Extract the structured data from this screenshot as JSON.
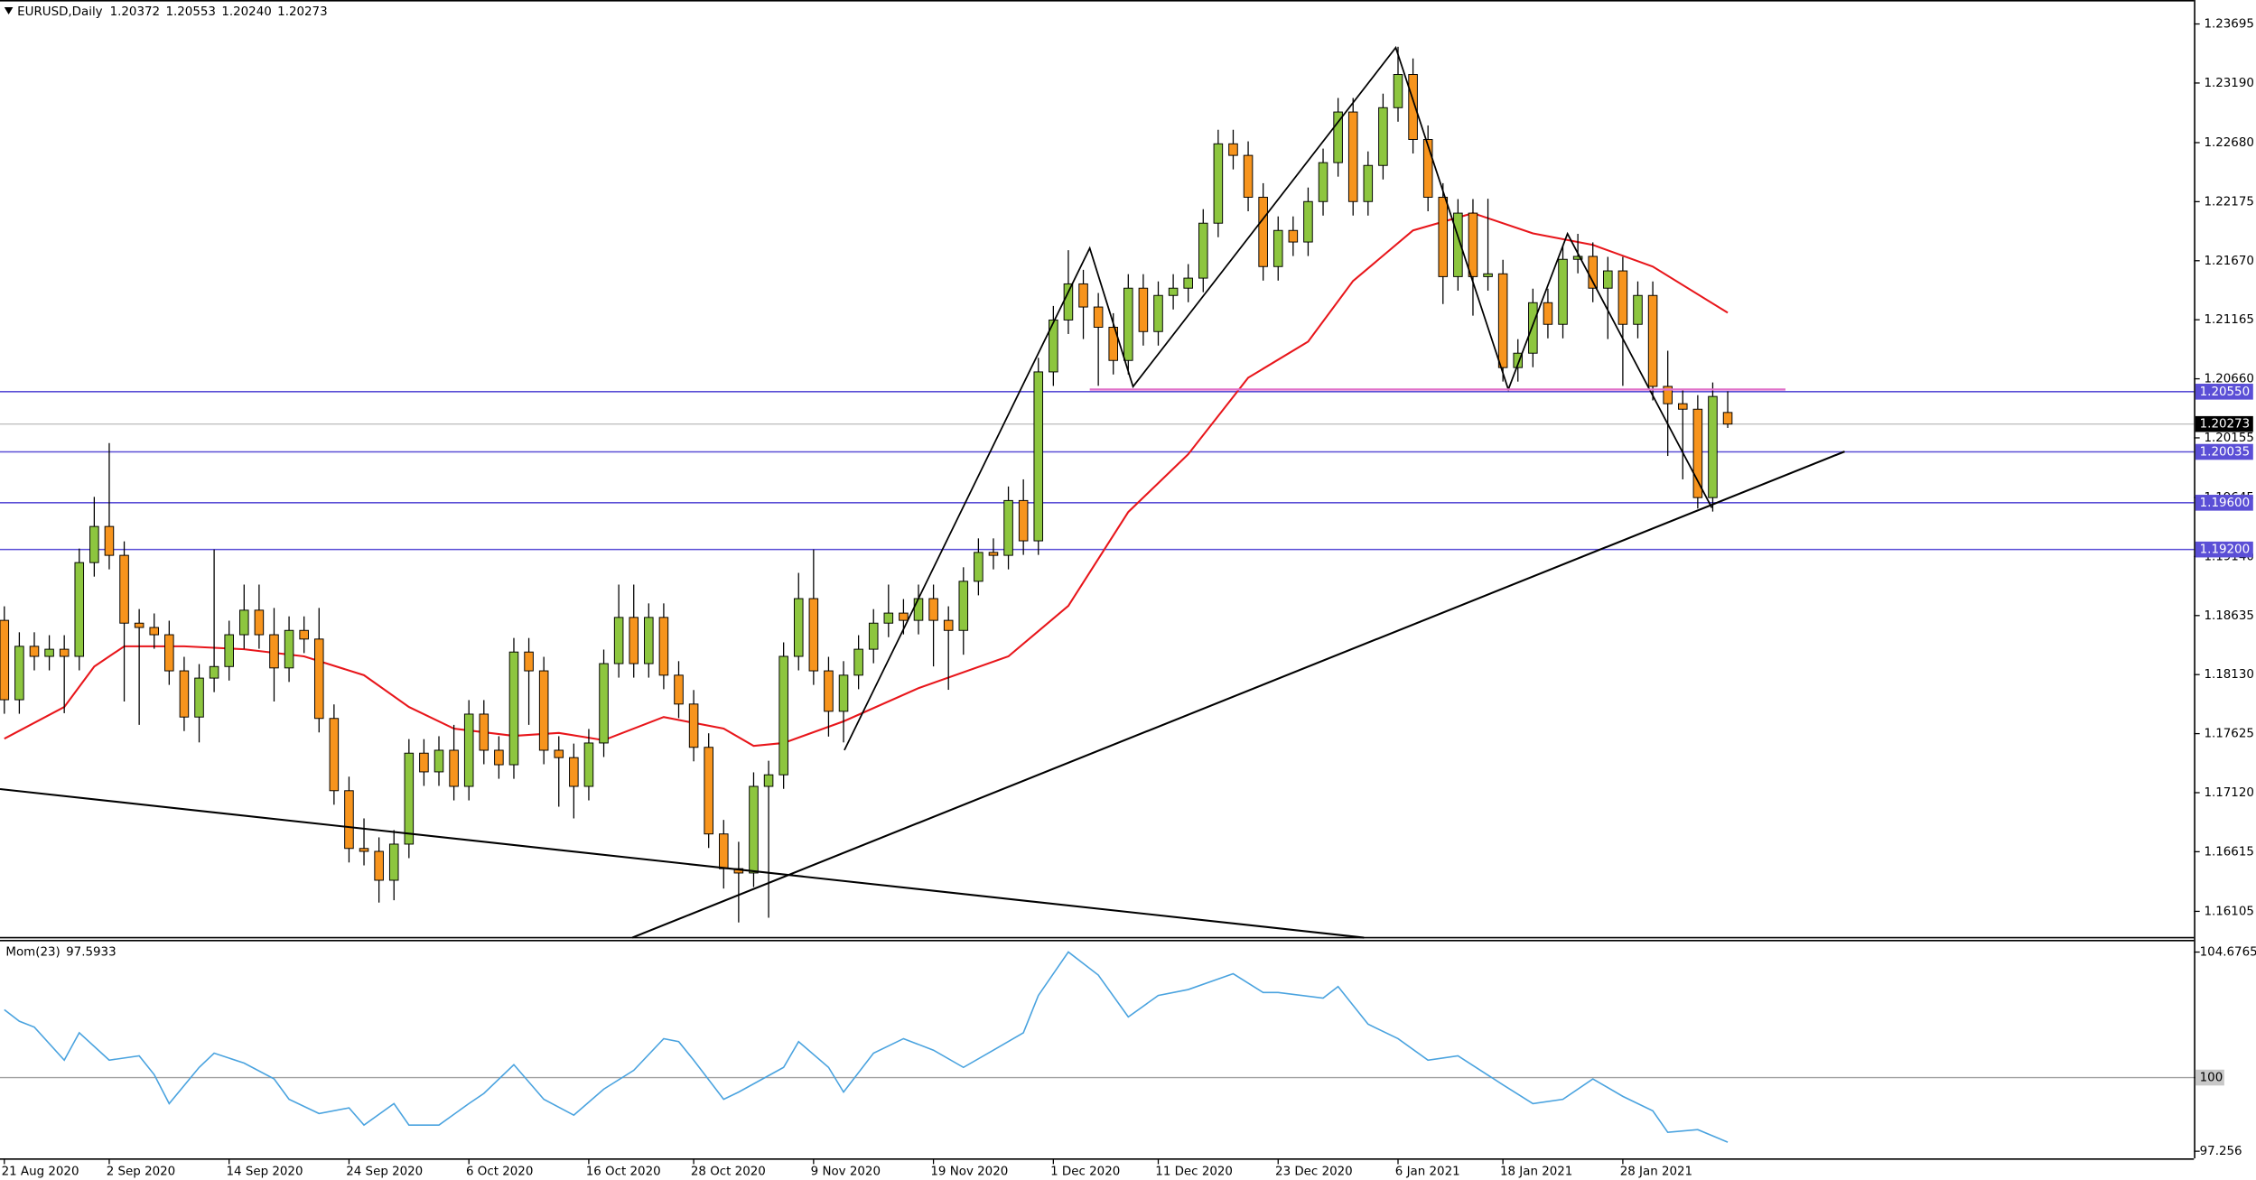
{
  "chart_data": {
    "type": "candlestick",
    "title": "EURUSD,Daily",
    "quote_labels": [
      "1.20372",
      "1.20553",
      "1.20240",
      "1.20273"
    ],
    "categories": [
      "21 Aug 2020",
      null,
      null,
      null,
      null,
      null,
      null,
      "2 Sep 2020",
      null,
      null,
      null,
      null,
      null,
      null,
      null,
      "14 Sep 2020",
      null,
      null,
      null,
      null,
      null,
      null,
      null,
      "24 Sep 2020",
      null,
      null,
      null,
      null,
      null,
      null,
      null,
      "6 Oct 2020",
      null,
      null,
      null,
      null,
      null,
      null,
      null,
      "16 Oct 2020",
      null,
      null,
      null,
      null,
      null,
      null,
      "28 Oct 2020",
      null,
      null,
      null,
      null,
      null,
      null,
      null,
      "9 Nov 2020",
      null,
      null,
      null,
      null,
      null,
      null,
      null,
      "19 Nov 2020",
      null,
      null,
      null,
      null,
      null,
      null,
      null,
      "1 Dec 2020",
      null,
      null,
      null,
      null,
      null,
      null,
      "11 Dec 2020",
      null,
      null,
      null,
      null,
      null,
      null,
      null,
      "23 Dec 2020",
      null,
      null,
      null,
      null,
      null,
      null,
      null,
      "6 Jan 2021",
      null,
      null,
      null,
      null,
      null,
      null,
      "18 Jan 2021",
      null,
      null,
      null,
      null,
      null,
      null,
      null,
      "28 Jan 2021",
      null,
      null,
      null,
      null,
      null,
      null,
      null
    ],
    "open": [
      1.18594,
      1.17915,
      1.18372,
      1.18286,
      1.18347,
      1.18286,
      1.19088,
      1.19397,
      1.1915,
      1.1857,
      1.18533,
      1.18471,
      1.18162,
      1.17767,
      1.181,
      1.18199,
      1.18471,
      1.18681,
      1.18471,
      1.18187,
      1.18508,
      1.18434,
      1.17755,
      1.17137,
      1.16643,
      1.16618,
      1.16371,
      1.1668,
      1.17458,
      1.17298,
      1.17483,
      1.17174,
      1.17792,
      1.17483,
      1.17359,
      1.18323,
      1.18162,
      1.17483,
      1.1742,
      1.17174,
      1.17545,
      1.18224,
      1.18619,
      1.18224,
      1.18619,
      1.18125,
      1.17878,
      1.17508,
      1.16767,
      1.1647,
      1.16433,
      1.17174,
      1.17273,
      1.18286,
      1.1878,
      1.18162,
      1.17816,
      1.18125,
      1.18347,
      1.1857,
      1.18656,
      1.18594,
      1.1878,
      1.18594,
      1.18508,
      1.18928,
      1.19175,
      1.1915,
      1.19619,
      1.19274,
      1.20719,
      1.21163,
      1.21472,
      1.21274,
      1.21101,
      1.20817,
      1.21435,
      1.21064,
      1.21373,
      1.21435,
      1.21521,
      1.21991,
      1.2267,
      1.22571,
      1.22213,
      1.2162,
      1.21929,
      1.2183,
      1.22176,
      1.22509,
      1.22942,
      1.22176,
      1.22485,
      1.22979,
      1.23263,
      1.22707,
      1.22213,
      1.21534,
      1.22077,
      1.21534,
      1.21558,
      1.20756,
      1.20879,
      1.21311,
      1.21126,
      1.21682,
      1.21707,
      1.21435,
      1.21583,
      1.21126,
      1.21373,
      1.20595,
      1.20447,
      1.204,
      1.19644,
      1.20372
    ],
    "high": [
      1.18714,
      1.18492,
      1.18492,
      1.18467,
      1.18467,
      1.19208,
      1.1965,
      1.2011,
      1.1927,
      1.1869,
      1.18653,
      1.18591,
      1.18282,
      1.1822,
      1.192,
      1.18591,
      1.189,
      1.189,
      1.187,
      1.18628,
      1.18628,
      1.187,
      1.17875,
      1.17257,
      1.169,
      1.16738,
      1.168,
      1.17578,
      1.17578,
      1.17603,
      1.177,
      1.17912,
      1.17912,
      1.17603,
      1.18443,
      1.18443,
      1.18282,
      1.17603,
      1.1754,
      1.17665,
      1.18344,
      1.189,
      1.189,
      1.18739,
      1.18739,
      1.18245,
      1.17998,
      1.17628,
      1.16887,
      1.167,
      1.17294,
      1.17393,
      1.18406,
      1.19,
      1.192,
      1.18282,
      1.18245,
      1.18467,
      1.1869,
      1.189,
      1.18776,
      1.189,
      1.189,
      1.18714,
      1.19048,
      1.19295,
      1.19295,
      1.19739,
      1.198,
      1.20839,
      1.21283,
      1.2176,
      1.21592,
      1.21394,
      1.21221,
      1.21555,
      1.21555,
      1.21493,
      1.21555,
      1.21641,
      1.22111,
      1.2279,
      1.2279,
      1.22691,
      1.22333,
      1.22049,
      1.22049,
      1.22296,
      1.22629,
      1.23062,
      1.23062,
      1.22605,
      1.23099,
      1.235,
      1.234,
      1.22827,
      1.22333,
      1.22197,
      1.22197,
      1.222,
      1.21678,
      1.20999,
      1.21431,
      1.21431,
      1.21802,
      1.219,
      1.21827,
      1.21703,
      1.21703,
      1.21493,
      1.21493,
      1.209,
      1.20567,
      1.2052,
      1.20629,
      1.20553
    ],
    "low": [
      1.17795,
      1.17795,
      1.18166,
      1.18166,
      1.178,
      1.18166,
      1.18968,
      1.1903,
      1.179,
      1.177,
      1.18351,
      1.18042,
      1.17647,
      1.1755,
      1.1798,
      1.18079,
      1.18351,
      1.18351,
      1.179,
      1.18067,
      1.18314,
      1.17635,
      1.17017,
      1.16523,
      1.16498,
      1.1618,
      1.162,
      1.1656,
      1.17178,
      1.17178,
      1.17054,
      1.17054,
      1.17363,
      1.17239,
      1.17239,
      1.177,
      1.17363,
      1.17,
      1.169,
      1.17054,
      1.17425,
      1.18104,
      1.18104,
      1.18104,
      1.18005,
      1.17758,
      1.17388,
      1.16647,
      1.163,
      1.1601,
      1.16313,
      1.1605,
      1.17153,
      1.18166,
      1.18042,
      1.176,
      1.1755,
      1.18005,
      1.18227,
      1.1845,
      1.18474,
      1.18474,
      1.182,
      1.18,
      1.183,
      1.18808,
      1.1903,
      1.1903,
      1.19154,
      1.19154,
      1.20599,
      1.21043,
      1.21,
      1.206,
      1.20697,
      1.20697,
      1.20944,
      1.20944,
      1.21253,
      1.21315,
      1.21401,
      1.21871,
      1.22451,
      1.22093,
      1.215,
      1.215,
      1.2171,
      1.2171,
      1.22056,
      1.22389,
      1.22056,
      1.22056,
      1.22365,
      1.22859,
      1.22587,
      1.22093,
      1.213,
      1.21414,
      1.212,
      1.21414,
      1.20636,
      1.20636,
      1.20759,
      1.21006,
      1.21006,
      1.21562,
      1.21315,
      1.21,
      1.206,
      1.21006,
      1.20475,
      1.2,
      1.198,
      1.1955,
      1.19524,
      1.2024
    ],
    "close": [
      1.17915,
      1.18372,
      1.18286,
      1.18347,
      1.18286,
      1.19088,
      1.19397,
      1.1915,
      1.1857,
      1.18533,
      1.18471,
      1.18162,
      1.17767,
      1.181,
      1.18199,
      1.18471,
      1.18681,
      1.18471,
      1.18187,
      1.18508,
      1.18434,
      1.17755,
      1.17137,
      1.16643,
      1.16618,
      1.16371,
      1.1668,
      1.17458,
      1.17298,
      1.17483,
      1.17174,
      1.17792,
      1.17483,
      1.17359,
      1.18323,
      1.18162,
      1.17483,
      1.1742,
      1.17174,
      1.17545,
      1.18224,
      1.18619,
      1.18224,
      1.18619,
      1.18125,
      1.17878,
      1.17508,
      1.16767,
      1.1647,
      1.16433,
      1.17174,
      1.17273,
      1.18286,
      1.1878,
      1.18162,
      1.17816,
      1.18125,
      1.18347,
      1.1857,
      1.18656,
      1.18594,
      1.1878,
      1.18594,
      1.18508,
      1.18928,
      1.19175,
      1.1915,
      1.19619,
      1.19274,
      1.20719,
      1.21163,
      1.21472,
      1.21274,
      1.21101,
      1.20817,
      1.21435,
      1.21064,
      1.21373,
      1.21435,
      1.21521,
      1.21991,
      1.2267,
      1.22571,
      1.22213,
      1.2162,
      1.21929,
      1.2183,
      1.22176,
      1.22509,
      1.22942,
      1.22176,
      1.22485,
      1.22979,
      1.23263,
      1.22707,
      1.22213,
      1.21534,
      1.22077,
      1.21534,
      1.21558,
      1.20756,
      1.20879,
      1.21311,
      1.21126,
      1.21682,
      1.21707,
      1.21435,
      1.21583,
      1.21126,
      1.21373,
      1.20595,
      1.20447,
      1.204,
      1.19644,
      1.20509,
      1.20273
    ],
    "up_color": "#8dc63f",
    "down_color": "#f7941d",
    "ylim": [
      1.1588,
      1.239
    ],
    "yticks": [
      1.23695,
      {
        "value": 1.2319,
        "label": "1.23190"
      },
      {
        "value": 1.2268,
        "label": "1.22680"
      },
      1.22175,
      {
        "value": 1.2167,
        "label": "1.21670"
      },
      1.21165,
      {
        "value": 1.2066,
        "label": "1.20660"
      },
      1.20155,
      1.19645,
      {
        "value": 1.1914,
        "label": "1.19140"
      },
      1.18635,
      {
        "value": 1.1813,
        "label": "1.18130"
      },
      1.17625,
      {
        "value": 1.1712,
        "label": "1.17120"
      },
      1.16615,
      1.16105
    ],
    "levels": [
      {
        "value": 1.2055,
        "label": "1.20550"
      },
      {
        "value": 1.20035,
        "label": "1.20035"
      },
      {
        "value": 1.196,
        "label": "1.19600"
      },
      {
        "value": 1.192,
        "label": "1.19200"
      }
    ],
    "level_color": "#5b4fd6",
    "price_line_color": "#c0c0c0",
    "ma": {
      "color": "#e8161b",
      "x": [
        0,
        4,
        6,
        8,
        12,
        16,
        20,
        24,
        27,
        30,
        34,
        37,
        40,
        44,
        48,
        50,
        52,
        56,
        61,
        67,
        71,
        75,
        79,
        83,
        87,
        90,
        94,
        98,
        102,
        106,
        110,
        115
      ],
      "values": [
        1.17582,
        1.17853,
        1.18199,
        1.18372,
        1.18372,
        1.18347,
        1.18286,
        1.18125,
        1.17853,
        1.17668,
        1.17606,
        1.17631,
        1.17569,
        1.17767,
        1.17668,
        1.1752,
        1.17545,
        1.1773,
        1.18014,
        1.18286,
        1.18718,
        1.19521,
        1.20015,
        1.20669,
        1.20978,
        1.21497,
        1.21929,
        1.22077,
        1.21904,
        1.21805,
        1.2162,
        1.21225
      ]
    },
    "indicator": {
      "type": "line",
      "name": "Mom(23)",
      "color": "#4aa3df",
      "x": [
        0,
        1,
        2,
        4,
        5,
        7,
        9,
        10,
        11,
        13,
        14,
        16,
        18,
        19,
        21,
        23,
        24,
        26,
        27,
        29,
        31,
        32,
        34,
        36,
        38,
        40,
        42,
        44,
        45,
        46,
        48,
        49,
        52,
        53,
        55,
        56,
        58,
        60,
        62,
        64,
        66,
        68,
        69,
        71,
        73,
        75,
        77,
        79,
        82,
        84,
        85,
        88,
        89,
        91,
        93,
        95,
        97,
        100,
        102,
        104,
        106,
        108,
        110,
        111,
        113,
        115
      ],
      "values": [
        102.53,
        102.1,
        101.88,
        100.65,
        101.67,
        100.65,
        100.81,
        100.11,
        99.03,
        100.38,
        100.91,
        100.54,
        99.95,
        99.19,
        98.66,
        98.87,
        98.23,
        99.03,
        98.23,
        98.23,
        99.03,
        99.41,
        100.48,
        99.19,
        98.6,
        99.57,
        100.27,
        101.45,
        101.34,
        100.65,
        99.19,
        99.46,
        100.38,
        101.34,
        100.38,
        99.46,
        100.91,
        101.45,
        101.02,
        100.38,
        101.02,
        101.67,
        103.06,
        104.68,
        103.82,
        102.26,
        103.06,
        103.28,
        103.87,
        103.17,
        103.17,
        102.96,
        103.39,
        101.99,
        101.45,
        100.65,
        100.81,
        99.73,
        99.03,
        99.19,
        99.95,
        99.3,
        98.76,
        97.96,
        98.06,
        97.5933
      ],
      "ylim": [
        96.99,
        105.16
      ],
      "yticks": [
        104.6765,
        100,
        97.256
      ],
      "levels": [
        100
      ],
      "level_color": "#a0a0a0"
    }
  }
}
